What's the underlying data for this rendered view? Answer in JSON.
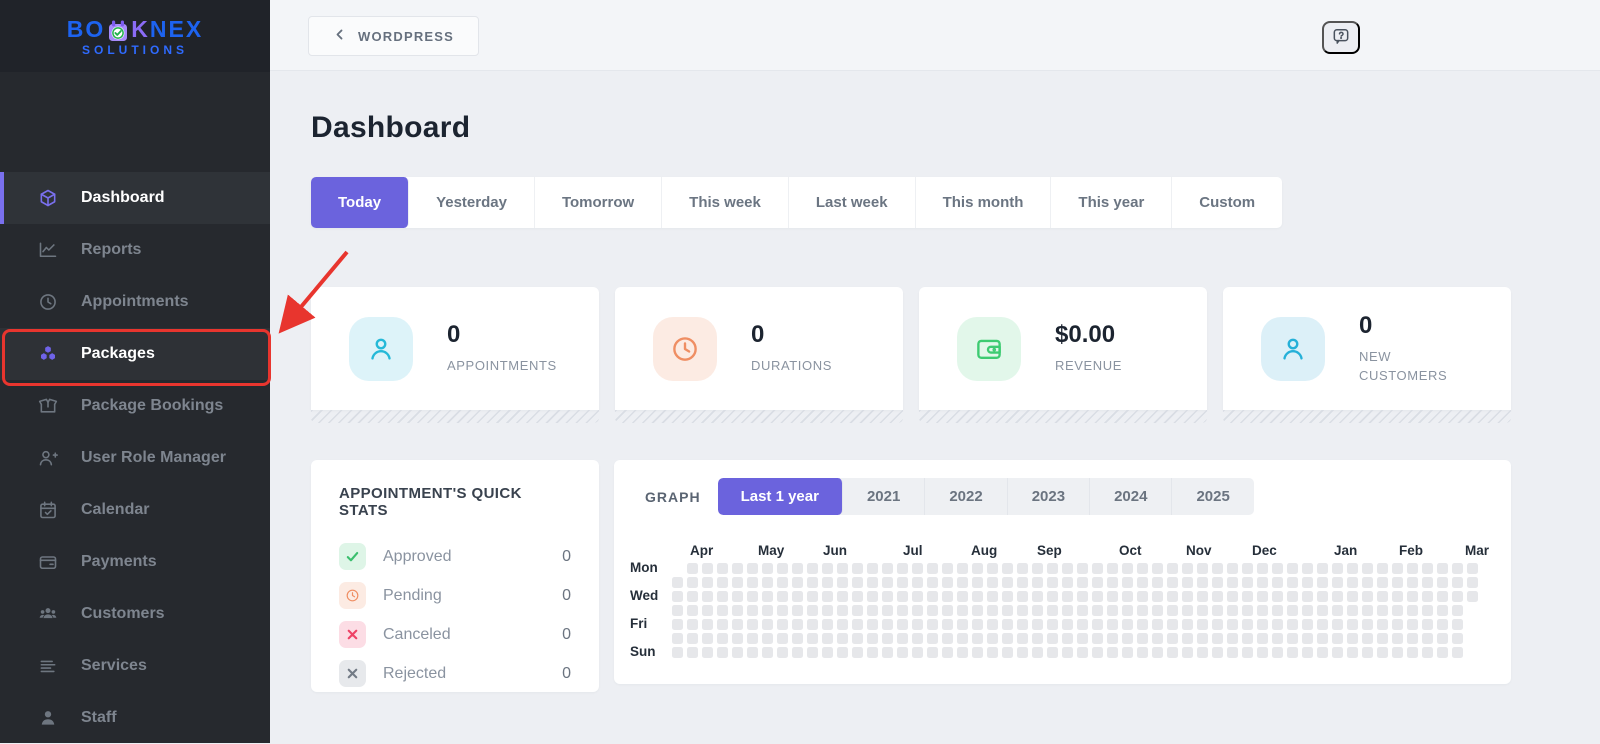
{
  "sidebar": {
    "logo": {
      "part1": "BO",
      "part2": "K",
      "part3": "NEX",
      "subtitle": "SOLUTIONS",
      "icon": "calendar-check-logo-icon"
    },
    "items": [
      {
        "label": "Dashboard",
        "icon": "cube",
        "active": true,
        "highlighted": false
      },
      {
        "label": "Reports",
        "icon": "chart",
        "active": false,
        "highlighted": false
      },
      {
        "label": "Appointments",
        "icon": "clock",
        "active": false,
        "highlighted": false
      },
      {
        "label": "Packages",
        "icon": "packages",
        "active": false,
        "highlighted": true
      },
      {
        "label": "Package Bookings",
        "icon": "box",
        "active": false,
        "highlighted": false
      },
      {
        "label": "User Role Manager",
        "icon": "user-plus",
        "active": false,
        "highlighted": false
      },
      {
        "label": "Calendar",
        "icon": "calendar",
        "active": false,
        "highlighted": false
      },
      {
        "label": "Payments",
        "icon": "wallet",
        "active": false,
        "highlighted": false
      },
      {
        "label": "Customers",
        "icon": "users",
        "active": false,
        "highlighted": false
      },
      {
        "label": "Services",
        "icon": "list",
        "active": false,
        "highlighted": false
      },
      {
        "label": "Staff",
        "icon": "user",
        "active": false,
        "highlighted": false
      }
    ]
  },
  "topbar": {
    "back_label": "WORDPRESS",
    "back_icon": "chevron-left-icon",
    "help_icon": "question-bubble-icon"
  },
  "page_title": "Dashboard",
  "filter_tabs": {
    "active": "Today",
    "items": [
      "Today",
      "Yesterday",
      "Tomorrow",
      "This week",
      "Last week",
      "This month",
      "This year",
      "Custom"
    ]
  },
  "stat_cards": [
    {
      "value": "0",
      "label": "APPOINTMENTS",
      "icon": "person-icon",
      "accent": "#25b9d8",
      "tile_bg": "#ddf3f9"
    },
    {
      "value": "0",
      "label": "DURATIONS",
      "icon": "clock-icon",
      "accent": "#ef8e63",
      "tile_bg": "#fcebe3"
    },
    {
      "value": "$0.00",
      "label": "REVENUE",
      "icon": "wallet-icon",
      "accent": "#3ecb72",
      "tile_bg": "#e2f7ea"
    },
    {
      "value": "0",
      "label": "NEW CUSTOMERS",
      "icon": "person-icon",
      "accent": "#25b0d8",
      "tile_bg": "#dcf0f8"
    }
  ],
  "quick_stats": {
    "title": "APPOINTMENT'S QUICK STATS",
    "rows": [
      {
        "label": "Approved",
        "value": "0",
        "icon": "check-icon",
        "accent": "#3bbf6e",
        "tile_bg": "#def5e7"
      },
      {
        "label": "Pending",
        "value": "0",
        "icon": "clock-icon",
        "accent": "#ef8e63",
        "tile_bg": "#fcebe3"
      },
      {
        "label": "Canceled",
        "value": "0",
        "icon": "x-icon",
        "accent": "#ee4266",
        "tile_bg": "#fcdde5"
      },
      {
        "label": "Rejected",
        "value": "0",
        "icon": "x-icon",
        "accent": "#737b86",
        "tile_bg": "#e7e9ec"
      }
    ]
  },
  "graph": {
    "label": "GRAPH",
    "tabs": [
      "Last 1 year",
      "2021",
      "2022",
      "2023",
      "2024",
      "2025"
    ],
    "active_tab": "Last 1 year"
  },
  "chart_data": {
    "type": "heatmap",
    "title": "GRAPH — appointment activity calendar (Last 1 year)",
    "x_labels": [
      "Apr",
      "May",
      "Jun",
      "Jul",
      "Aug",
      "Sep",
      "Oct",
      "Nov",
      "Dec",
      "Jan",
      "Feb",
      "Mar"
    ],
    "y_rows": [
      "Mon",
      "Tue",
      "Wed",
      "Thu",
      "Fri",
      "Sat",
      "Sun"
    ],
    "y_labels_visible": [
      "Mon",
      "Wed",
      "Fri",
      "Sun"
    ],
    "weeks": 54,
    "uniform_value": 0,
    "note": "every week/day cell shows zero activity (all cells empty light gray)",
    "cell_color": "#e6e7ea",
    "legend": "none",
    "grid": "github-style contribution grid; first column missing Monday, last column only Mon-Wed"
  },
  "annotation": {
    "type": "highlight-box-with-arrow",
    "target": "Packages sidebar item",
    "color": "#e8352e"
  },
  "colors": {
    "accent_purple": "#6b63dd",
    "sidebar_bg": "#26292e",
    "sidebar_active_bar": "#7a70ee",
    "content_bg": "#edeff3",
    "topbar_bg": "#f3f5f8",
    "card_bg": "#ffffff",
    "annotation_red": "#e8352e"
  }
}
